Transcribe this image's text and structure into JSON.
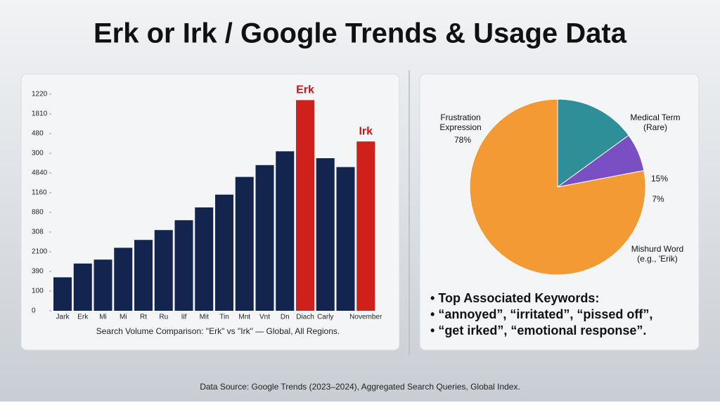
{
  "title": "Erk or Irk / Google Trends & Usage Data",
  "source": "Data Source: Google Trends (2023–2024), Aggregated Search Queries, Global Index.",
  "chart_data": [
    {
      "type": "bar",
      "caption": "Search Volume Comparison: \"Erk\" vs \"Irk\" — Global, All Regions.",
      "categories": [
        "Jark",
        "Erk",
        "Mi",
        "Mi",
        "Rt",
        "Ru",
        "Iif",
        "Mit",
        "Tin",
        "Mnt",
        "Vnt",
        "Dn",
        "Diach",
        "Carly",
        null,
        "November"
      ],
      "values": [
        1.7,
        2.4,
        2.6,
        3.2,
        3.6,
        4.1,
        4.6,
        5.25,
        5.9,
        6.8,
        7.4,
        8.1,
        10.7,
        7.75,
        7.3,
        8.6
      ],
      "colors": [
        "#13254f",
        "#13254f",
        "#13254f",
        "#13254f",
        "#13254f",
        "#13254f",
        "#13254f",
        "#13254f",
        "#13254f",
        "#13254f",
        "#13254f",
        "#13254f",
        "#d0201c",
        "#13254f",
        "#13254f",
        "#d0201c"
      ],
      "annotations": [
        {
          "text": "Erk",
          "at": "Diach",
          "color": "#c0191a"
        },
        {
          "text": "Irk",
          "at": "November",
          "color": "#c0191a"
        }
      ],
      "ylim": [
        0,
        11
      ],
      "yticks": [
        {
          "value": 0,
          "label": "0"
        },
        {
          "value": 1,
          "label": "100"
        },
        {
          "value": 2,
          "label": "390"
        },
        {
          "value": 3,
          "label": "2100"
        },
        {
          "value": 4,
          "label": "308"
        },
        {
          "value": 5,
          "label": "880"
        },
        {
          "value": 6,
          "label": "1160"
        },
        {
          "value": 7,
          "label": "4840"
        },
        {
          "value": 8,
          "label": "300"
        },
        {
          "value": 9,
          "label": "480"
        },
        {
          "value": 10,
          "label": "1810"
        },
        {
          "value": 11,
          "label": "1220"
        }
      ]
    },
    {
      "type": "pie",
      "categories": [
        "Frustration\nExpression",
        "Medical Term\n(Rare)",
        "Mishurd Word\n(e.g., 'Erik)"
      ],
      "values": [
        78,
        15,
        7
      ],
      "value_labels": [
        "78%",
        "15%",
        "7%"
      ],
      "colors": [
        "#f39a34",
        "#2f8f98",
        "#7b4fc4"
      ]
    }
  ],
  "keywords": {
    "heading": "Top Associated Keywords:",
    "lines": [
      "“annoyed”, “irritated”, “pissed off”,",
      "“get irked”, “emotional response”."
    ]
  }
}
